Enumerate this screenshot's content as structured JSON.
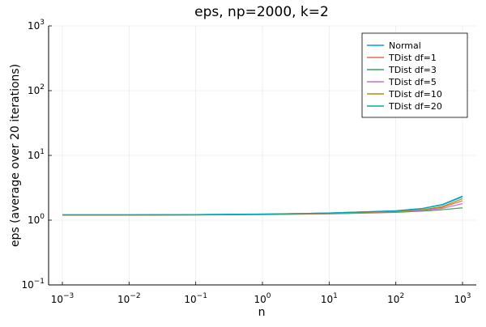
{
  "chart_data": {
    "type": "line",
    "title": "eps, np=2000, k=2",
    "xlabel": "n",
    "ylabel": "eps (average over 20 iterations)",
    "xscale": "log",
    "yscale": "log",
    "xlim": [
      0.001,
      1000
    ],
    "ylim": [
      0.1,
      1000
    ],
    "x_ticks": [
      {
        "base": "10",
        "exp": "−3"
      },
      {
        "base": "10",
        "exp": "−2"
      },
      {
        "base": "10",
        "exp": "−1"
      },
      {
        "base": "10",
        "exp": "0"
      },
      {
        "base": "10",
        "exp": "1"
      },
      {
        "base": "10",
        "exp": "2"
      },
      {
        "base": "10",
        "exp": "3"
      }
    ],
    "y_ticks": [
      {
        "base": "10",
        "exp": "−1"
      },
      {
        "base": "10",
        "exp": "0"
      },
      {
        "base": "10",
        "exp": "1"
      },
      {
        "base": "10",
        "exp": "2"
      },
      {
        "base": "10",
        "exp": "3"
      }
    ],
    "grid": true,
    "legend_position": "top-right",
    "x": [
      0.001,
      0.01,
      0.1,
      1,
      10,
      100,
      250,
      500,
      1000
    ],
    "series": [
      {
        "name": "Normal",
        "color": "#009AFA",
        "values": [
          1.21,
          1.21,
          1.22,
          1.24,
          1.29,
          1.4,
          1.52,
          1.75,
          2.35
        ]
      },
      {
        "name": "TDist df=1",
        "color": "#E36F47",
        "values": [
          1.2,
          1.2,
          1.21,
          1.23,
          1.27,
          1.36,
          1.44,
          1.58,
          2.0
        ]
      },
      {
        "name": "TDist df=3",
        "color": "#3EA44E",
        "values": [
          1.19,
          1.19,
          1.2,
          1.22,
          1.25,
          1.32,
          1.38,
          1.45,
          1.55
        ]
      },
      {
        "name": "TDist df=5",
        "color": "#C371D2",
        "values": [
          1.2,
          1.2,
          1.21,
          1.23,
          1.26,
          1.34,
          1.41,
          1.52,
          1.8
        ]
      },
      {
        "name": "TDist df=10",
        "color": "#AC8E18",
        "values": [
          1.2,
          1.2,
          1.21,
          1.23,
          1.27,
          1.36,
          1.45,
          1.62,
          2.15
        ]
      },
      {
        "name": "TDist df=20",
        "color": "#00A9AD",
        "values": [
          1.21,
          1.21,
          1.22,
          1.24,
          1.29,
          1.39,
          1.51,
          1.72,
          2.3
        ]
      }
    ]
  }
}
